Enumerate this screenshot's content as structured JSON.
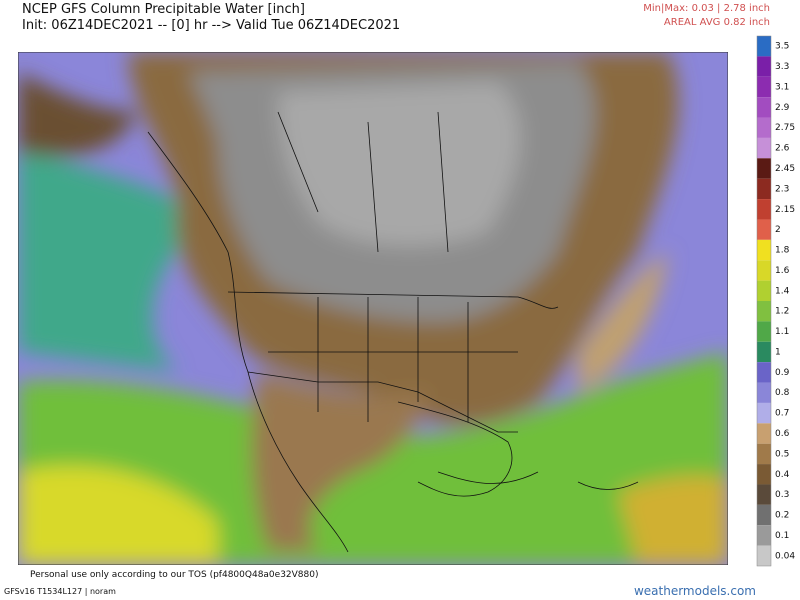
{
  "header": {
    "title": "NCEP GFS Column Precipitable Water [inch]",
    "init": "Init: 06Z14DEC2021 -- [0] hr --> Valid Tue 06Z14DEC2021",
    "minmax": "Min|Max: 0.03 | 2.78 inch",
    "areal": "AREAL AVG 0.82 inch"
  },
  "colorbar": [
    {
      "label": 3.5,
      "color": "#2a6cc4"
    },
    {
      "label": 3.3,
      "color": "#7a1fa8"
    },
    {
      "label": 3.1,
      "color": "#8c2cb0"
    },
    {
      "label": 2.9,
      "color": "#a24cc0"
    },
    {
      "label": 2.75,
      "color": "#b46ccc"
    },
    {
      "label": 2.6,
      "color": "#c690d8"
    },
    {
      "label": 2.45,
      "color": "#5a1a14"
    },
    {
      "label": 2.3,
      "color": "#8c2a20"
    },
    {
      "label": 2.15,
      "color": "#c04030"
    },
    {
      "label": 2,
      "color": "#e0604a"
    },
    {
      "label": 1.8,
      "color": "#f0e020"
    },
    {
      "label": 1.6,
      "color": "#d8d828"
    },
    {
      "label": 1.4,
      "color": "#b0d030"
    },
    {
      "label": 1.2,
      "color": "#80c040"
    },
    {
      "label": 1.1,
      "color": "#50a848"
    },
    {
      "label": 1,
      "color": "#2a8a60"
    },
    {
      "label": 0.9,
      "color": "#6a64c8"
    },
    {
      "label": 0.8,
      "color": "#8a86d8"
    },
    {
      "label": 0.7,
      "color": "#b0aee8"
    },
    {
      "label": 0.6,
      "color": "#c8a070"
    },
    {
      "label": 0.5,
      "color": "#a07a4a"
    },
    {
      "label": 0.4,
      "color": "#7a5a34"
    },
    {
      "label": 0.3,
      "color": "#5a4a3a"
    },
    {
      "label": 0.2,
      "color": "#707070"
    },
    {
      "label": 0.1,
      "color": "#9a9a9a"
    },
    {
      "label": 0.04,
      "color": "#c8c8c8"
    }
  ],
  "footer": {
    "tos": "Personal use only according to our TOS (pf4800Q48a0e32V880)",
    "model": "GFSv16 T1534L127 | noram",
    "site": "weathermodels.com"
  }
}
